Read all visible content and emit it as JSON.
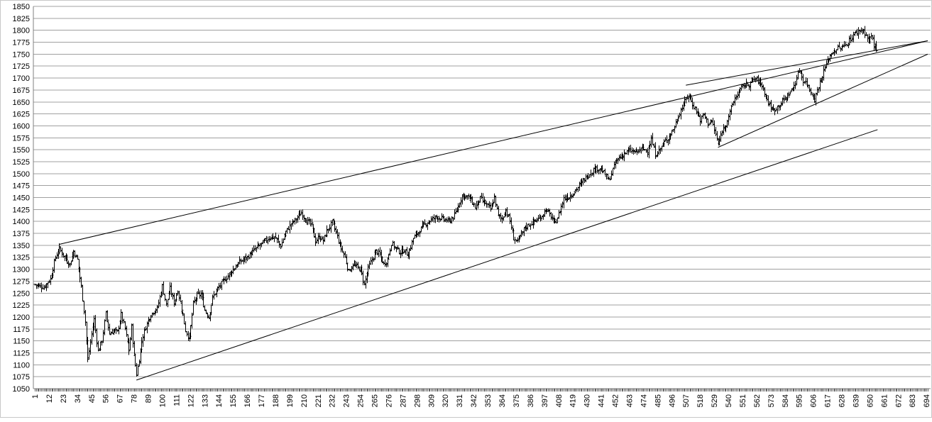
{
  "chart_data": {
    "type": "line",
    "style": "ohlc-bars",
    "title": "",
    "xlabel": "",
    "ylabel": "",
    "ylim": [
      1050,
      1850
    ],
    "xlim": [
      1,
      695
    ],
    "grid": {
      "horizontal": true,
      "vertical": false
    },
    "legend": "none",
    "y_ticks": [
      "1050",
      "1075",
      "1100",
      "1125",
      "1150",
      "1175",
      "1200",
      "1225",
      "1250",
      "1275",
      "1300",
      "1325",
      "1350",
      "1375",
      "1400",
      "1425",
      "1450",
      "1475",
      "1500",
      "1525",
      "1550",
      "1575",
      "1600",
      "1625",
      "1650",
      "1675",
      "1700",
      "1725",
      "1750",
      "1775",
      "1800",
      "1825",
      "1850"
    ],
    "x_ticks": [
      "1",
      "12",
      "23",
      "34",
      "45",
      "56",
      "67",
      "78",
      "89",
      "100",
      "111",
      "122",
      "133",
      "144",
      "155",
      "166",
      "177",
      "188",
      "199",
      "210",
      "221",
      "232",
      "243",
      "254",
      "265",
      "276",
      "287",
      "298",
      "309",
      "320",
      "331",
      "342",
      "353",
      "364",
      "375",
      "386",
      "397",
      "408",
      "419",
      "430",
      "441",
      "452",
      "463",
      "474",
      "485",
      "496",
      "507",
      "518",
      "529",
      "540",
      "551",
      "562",
      "573",
      "584",
      "595",
      "606",
      "617",
      "628",
      "639",
      "650",
      "661",
      "672",
      "683",
      "694"
    ],
    "colors": {
      "price": "#000000",
      "grid": "#a0a0a0",
      "trendline": "#000000"
    },
    "price_anchors": [
      {
        "x": 1,
        "y": 1268
      },
      {
        "x": 8,
        "y": 1262
      },
      {
        "x": 13,
        "y": 1280
      },
      {
        "x": 17,
        "y": 1325
      },
      {
        "x": 20,
        "y": 1343
      },
      {
        "x": 24,
        "y": 1325
      },
      {
        "x": 28,
        "y": 1310
      },
      {
        "x": 31,
        "y": 1338
      },
      {
        "x": 34,
        "y": 1320
      },
      {
        "x": 37,
        "y": 1262
      },
      {
        "x": 40,
        "y": 1190
      },
      {
        "x": 42,
        "y": 1110
      },
      {
        "x": 45,
        "y": 1165
      },
      {
        "x": 47,
        "y": 1195
      },
      {
        "x": 50,
        "y": 1128
      },
      {
        "x": 53,
        "y": 1150
      },
      {
        "x": 56,
        "y": 1208
      },
      {
        "x": 59,
        "y": 1165
      },
      {
        "x": 62,
        "y": 1172
      },
      {
        "x": 65,
        "y": 1168
      },
      {
        "x": 68,
        "y": 1205
      },
      {
        "x": 71,
        "y": 1175
      },
      {
        "x": 74,
        "y": 1130
      },
      {
        "x": 76,
        "y": 1180
      },
      {
        "x": 78,
        "y": 1118
      },
      {
        "x": 80,
        "y": 1080
      },
      {
        "x": 82,
        "y": 1112
      },
      {
        "x": 84,
        "y": 1150
      },
      {
        "x": 87,
        "y": 1180
      },
      {
        "x": 90,
        "y": 1200
      },
      {
        "x": 93,
        "y": 1212
      },
      {
        "x": 96,
        "y": 1218
      },
      {
        "x": 100,
        "y": 1265
      },
      {
        "x": 103,
        "y": 1225
      },
      {
        "x": 106,
        "y": 1260
      },
      {
        "x": 109,
        "y": 1230
      },
      {
        "x": 112,
        "y": 1255
      },
      {
        "x": 115,
        "y": 1218
      },
      {
        "x": 118,
        "y": 1172
      },
      {
        "x": 121,
        "y": 1155
      },
      {
        "x": 124,
        "y": 1228
      },
      {
        "x": 127,
        "y": 1245
      },
      {
        "x": 130,
        "y": 1248
      },
      {
        "x": 133,
        "y": 1215
      },
      {
        "x": 136,
        "y": 1200
      },
      {
        "x": 139,
        "y": 1240
      },
      {
        "x": 142,
        "y": 1255
      },
      {
        "x": 146,
        "y": 1270
      },
      {
        "x": 150,
        "y": 1283
      },
      {
        "x": 155,
        "y": 1300
      },
      {
        "x": 160,
        "y": 1315
      },
      {
        "x": 166,
        "y": 1325
      },
      {
        "x": 172,
        "y": 1342
      },
      {
        "x": 178,
        "y": 1355
      },
      {
        "x": 184,
        "y": 1368
      },
      {
        "x": 188,
        "y": 1365
      },
      {
        "x": 192,
        "y": 1348
      },
      {
        "x": 196,
        "y": 1378
      },
      {
        "x": 200,
        "y": 1395
      },
      {
        "x": 204,
        "y": 1405
      },
      {
        "x": 208,
        "y": 1418
      },
      {
        "x": 212,
        "y": 1402
      },
      {
        "x": 216,
        "y": 1392
      },
      {
        "x": 219,
        "y": 1358
      },
      {
        "x": 222,
        "y": 1368
      },
      {
        "x": 225,
        "y": 1360
      },
      {
        "x": 228,
        "y": 1380
      },
      {
        "x": 232,
        "y": 1398
      },
      {
        "x": 235,
        "y": 1378
      },
      {
        "x": 238,
        "y": 1350
      },
      {
        "x": 242,
        "y": 1325
      },
      {
        "x": 245,
        "y": 1295
      },
      {
        "x": 248,
        "y": 1310
      },
      {
        "x": 251,
        "y": 1305
      },
      {
        "x": 254,
        "y": 1300
      },
      {
        "x": 257,
        "y": 1268
      },
      {
        "x": 260,
        "y": 1302
      },
      {
        "x": 263,
        "y": 1320
      },
      {
        "x": 266,
        "y": 1338
      },
      {
        "x": 269,
        "y": 1330
      },
      {
        "x": 272,
        "y": 1310
      },
      {
        "x": 275,
        "y": 1320
      },
      {
        "x": 278,
        "y": 1355
      },
      {
        "x": 281,
        "y": 1345
      },
      {
        "x": 285,
        "y": 1335
      },
      {
        "x": 288,
        "y": 1340
      },
      {
        "x": 291,
        "y": 1330
      },
      {
        "x": 295,
        "y": 1365
      },
      {
        "x": 299,
        "y": 1378
      },
      {
        "x": 303,
        "y": 1392
      },
      {
        "x": 308,
        "y": 1402
      },
      {
        "x": 313,
        "y": 1410
      },
      {
        "x": 318,
        "y": 1405
      },
      {
        "x": 323,
        "y": 1400
      },
      {
        "x": 327,
        "y": 1412
      },
      {
        "x": 330,
        "y": 1432
      },
      {
        "x": 333,
        "y": 1455
      },
      {
        "x": 337,
        "y": 1452
      },
      {
        "x": 340,
        "y": 1445
      },
      {
        "x": 343,
        "y": 1430
      },
      {
        "x": 347,
        "y": 1448
      },
      {
        "x": 351,
        "y": 1438
      },
      {
        "x": 355,
        "y": 1425
      },
      {
        "x": 358,
        "y": 1450
      },
      {
        "x": 361,
        "y": 1412
      },
      {
        "x": 364,
        "y": 1405
      },
      {
        "x": 367,
        "y": 1425
      },
      {
        "x": 370,
        "y": 1400
      },
      {
        "x": 373,
        "y": 1365
      },
      {
        "x": 376,
        "y": 1358
      },
      {
        "x": 379,
        "y": 1372
      },
      {
        "x": 382,
        "y": 1388
      },
      {
        "x": 386,
        "y": 1395
      },
      {
        "x": 390,
        "y": 1402
      },
      {
        "x": 394,
        "y": 1408
      },
      {
        "x": 398,
        "y": 1425
      },
      {
        "x": 402,
        "y": 1410
      },
      {
        "x": 405,
        "y": 1395
      },
      {
        "x": 408,
        "y": 1415
      },
      {
        "x": 412,
        "y": 1448
      },
      {
        "x": 416,
        "y": 1452
      },
      {
        "x": 420,
        "y": 1462
      },
      {
        "x": 425,
        "y": 1478
      },
      {
        "x": 430,
        "y": 1495
      },
      {
        "x": 435,
        "y": 1508
      },
      {
        "x": 440,
        "y": 1512
      },
      {
        "x": 444,
        "y": 1498
      },
      {
        "x": 447,
        "y": 1485
      },
      {
        "x": 450,
        "y": 1508
      },
      {
        "x": 453,
        "y": 1528
      },
      {
        "x": 458,
        "y": 1540
      },
      {
        "x": 463,
        "y": 1548
      },
      {
        "x": 468,
        "y": 1545
      },
      {
        "x": 473,
        "y": 1552
      },
      {
        "x": 477,
        "y": 1548
      },
      {
        "x": 480,
        "y": 1572
      },
      {
        "x": 483,
        "y": 1540
      },
      {
        "x": 486,
        "y": 1548
      },
      {
        "x": 490,
        "y": 1565
      },
      {
        "x": 494,
        "y": 1578
      },
      {
        "x": 498,
        "y": 1598
      },
      {
        "x": 502,
        "y": 1628
      },
      {
        "x": 506,
        "y": 1650
      },
      {
        "x": 509,
        "y": 1665
      },
      {
        "x": 512,
        "y": 1645
      },
      {
        "x": 515,
        "y": 1632
      },
      {
        "x": 518,
        "y": 1612
      },
      {
        "x": 521,
        "y": 1625
      },
      {
        "x": 524,
        "y": 1605
      },
      {
        "x": 527,
        "y": 1610
      },
      {
        "x": 530,
        "y": 1582
      },
      {
        "x": 532,
        "y": 1560
      },
      {
        "x": 535,
        "y": 1590
      },
      {
        "x": 538,
        "y": 1605
      },
      {
        "x": 541,
        "y": 1628
      },
      {
        "x": 544,
        "y": 1652
      },
      {
        "x": 548,
        "y": 1672
      },
      {
        "x": 552,
        "y": 1685
      },
      {
        "x": 556,
        "y": 1688
      },
      {
        "x": 560,
        "y": 1698
      },
      {
        "x": 563,
        "y": 1695
      },
      {
        "x": 566,
        "y": 1685
      },
      {
        "x": 569,
        "y": 1662
      },
      {
        "x": 572,
        "y": 1642
      },
      {
        "x": 575,
        "y": 1632
      },
      {
        "x": 578,
        "y": 1640
      },
      {
        "x": 581,
        "y": 1648
      },
      {
        "x": 585,
        "y": 1660
      },
      {
        "x": 589,
        "y": 1675
      },
      {
        "x": 592,
        "y": 1690
      },
      {
        "x": 595,
        "y": 1718
      },
      {
        "x": 598,
        "y": 1695
      },
      {
        "x": 601,
        "y": 1688
      },
      {
        "x": 604,
        "y": 1672
      },
      {
        "x": 607,
        "y": 1655
      },
      {
        "x": 609,
        "y": 1675
      },
      {
        "x": 612,
        "y": 1698
      },
      {
        "x": 615,
        "y": 1722
      },
      {
        "x": 618,
        "y": 1742
      },
      {
        "x": 621,
        "y": 1755
      },
      {
        "x": 625,
        "y": 1762
      },
      {
        "x": 629,
        "y": 1765
      },
      {
        "x": 633,
        "y": 1775
      },
      {
        "x": 637,
        "y": 1790
      },
      {
        "x": 641,
        "y": 1798
      },
      {
        "x": 644,
        "y": 1802
      },
      {
        "x": 647,
        "y": 1790
      },
      {
        "x": 649,
        "y": 1775
      },
      {
        "x": 651,
        "y": 1790
      },
      {
        "x": 653,
        "y": 1770
      },
      {
        "x": 655,
        "y": 1760
      }
    ],
    "trendlines": [
      {
        "name": "",
        "from": {
          "x": 20,
          "y": 1352
        },
        "to": {
          "x": 695,
          "y": 1778
        }
      },
      {
        "name": "",
        "from": {
          "x": 80,
          "y": 1068
        },
        "to": {
          "x": 656,
          "y": 1592
        }
      },
      {
        "name": "",
        "from": {
          "x": 507,
          "y": 1685
        },
        "to": {
          "x": 695,
          "y": 1778
        }
      },
      {
        "name": "",
        "from": {
          "x": 532,
          "y": 1555
        },
        "to": {
          "x": 695,
          "y": 1750
        }
      }
    ]
  }
}
